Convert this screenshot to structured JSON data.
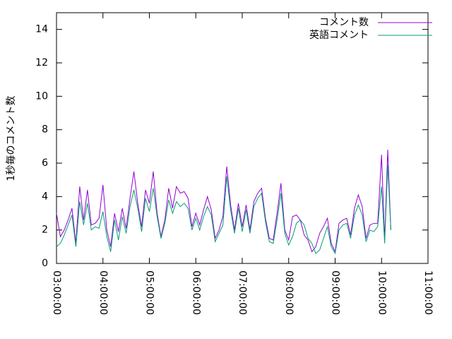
{
  "chart_data": {
    "type": "line",
    "ylabel": "1秒毎のコメント数",
    "x": [
      "03:00:00",
      "03:05:00",
      "03:10:00",
      "03:15:00",
      "03:20:00",
      "03:25:00",
      "03:30:00",
      "03:35:00",
      "03:40:00",
      "03:45:00",
      "03:50:00",
      "03:55:00",
      "04:00:00",
      "04:05:00",
      "04:10:00",
      "04:15:00",
      "04:20:00",
      "04:25:00",
      "04:30:00",
      "04:35:00",
      "04:40:00",
      "04:45:00",
      "04:50:00",
      "04:55:00",
      "05:00:00",
      "05:05:00",
      "05:10:00",
      "05:15:00",
      "05:20:00",
      "05:25:00",
      "05:30:00",
      "05:35:00",
      "05:40:00",
      "05:45:00",
      "05:50:00",
      "05:55:00",
      "06:00:00",
      "06:05:00",
      "06:10:00",
      "06:15:00",
      "06:20:00",
      "06:25:00",
      "06:30:00",
      "06:35:00",
      "06:40:00",
      "06:45:00",
      "06:50:00",
      "06:55:00",
      "07:00:00",
      "07:05:00",
      "07:10:00",
      "07:15:00",
      "07:20:00",
      "07:25:00",
      "07:30:00",
      "07:35:00",
      "07:40:00",
      "07:45:00",
      "07:50:00",
      "07:55:00",
      "08:00:00",
      "08:05:00",
      "08:10:00",
      "08:15:00",
      "08:20:00",
      "08:25:00",
      "08:30:00",
      "08:35:00",
      "08:40:00",
      "08:45:00",
      "08:50:00",
      "08:55:00",
      "09:00:00",
      "09:05:00",
      "09:10:00",
      "09:15:00",
      "09:20:00",
      "09:25:00",
      "09:30:00",
      "09:35:00",
      "09:40:00",
      "09:45:00",
      "09:50:00",
      "09:55:00",
      "10:00:00",
      "10:04:00",
      "10:08:00",
      "10:12:00"
    ],
    "series": [
      {
        "name": "コメント数",
        "color": "#9400d3",
        "values": [
          3.0,
          1.6,
          2.0,
          2.6,
          3.3,
          1.2,
          4.6,
          2.6,
          4.4,
          2.3,
          2.4,
          2.7,
          4.7,
          2.0,
          1.0,
          3.0,
          1.9,
          3.3,
          2.1,
          3.9,
          5.5,
          3.6,
          2.2,
          4.4,
          3.6,
          5.5,
          3.0,
          1.6,
          2.6,
          4.5,
          3.3,
          4.6,
          4.2,
          4.3,
          3.9,
          2.2,
          3.0,
          2.3,
          3.2,
          4.0,
          3.2,
          1.5,
          2.0,
          2.8,
          5.8,
          3.5,
          2.0,
          3.6,
          2.2,
          3.5,
          2.0,
          3.7,
          4.2,
          4.5,
          2.7,
          1.5,
          1.4,
          3.0,
          4.8,
          2.0,
          1.4,
          2.8,
          2.9,
          2.6,
          1.7,
          1.4,
          0.7,
          1.0,
          1.8,
          2.2,
          2.7,
          1.2,
          0.7,
          2.4,
          2.6,
          2.7,
          1.7,
          3.3,
          4.1,
          3.4,
          1.5,
          2.3,
          2.4,
          2.4,
          6.5,
          1.4,
          6.8,
          2.0
        ]
      },
      {
        "name": "英語コメント",
        "color": "#009e73",
        "values": [
          1.0,
          1.2,
          1.7,
          2.3,
          2.9,
          1.0,
          3.7,
          2.3,
          3.6,
          2.0,
          2.2,
          2.1,
          3.1,
          1.6,
          0.7,
          2.6,
          1.4,
          2.8,
          1.8,
          3.4,
          4.4,
          3.3,
          1.9,
          3.9,
          3.1,
          4.5,
          2.8,
          1.5,
          2.4,
          3.8,
          3.0,
          3.7,
          3.4,
          3.6,
          3.3,
          2.0,
          2.7,
          2.0,
          2.8,
          3.4,
          2.9,
          1.3,
          1.8,
          2.3,
          5.2,
          3.2,
          1.8,
          3.3,
          1.9,
          3.2,
          1.8,
          3.4,
          3.9,
          4.2,
          2.5,
          1.3,
          1.2,
          2.6,
          4.2,
          1.8,
          1.1,
          1.6,
          2.4,
          2.6,
          2.3,
          1.5,
          1.2,
          0.6,
          0.8,
          1.5,
          2.2,
          1.0,
          0.6,
          2.0,
          2.3,
          2.4,
          1.5,
          2.9,
          3.5,
          2.9,
          1.3,
          2.0,
          1.9,
          2.2,
          4.6,
          1.2,
          5.9,
          2.0
        ]
      }
    ],
    "xlim": [
      "03:00:00",
      "11:00:00"
    ],
    "xticks": [
      "03:00:00",
      "04:00:00",
      "05:00:00",
      "06:00:00",
      "07:00:00",
      "08:00:00",
      "09:00:00",
      "10:00:00",
      "11:00:00"
    ],
    "ylim": [
      0,
      15
    ],
    "yticks": [
      0,
      2,
      4,
      6,
      8,
      10,
      12,
      14
    ],
    "legend": "top-right"
  }
}
